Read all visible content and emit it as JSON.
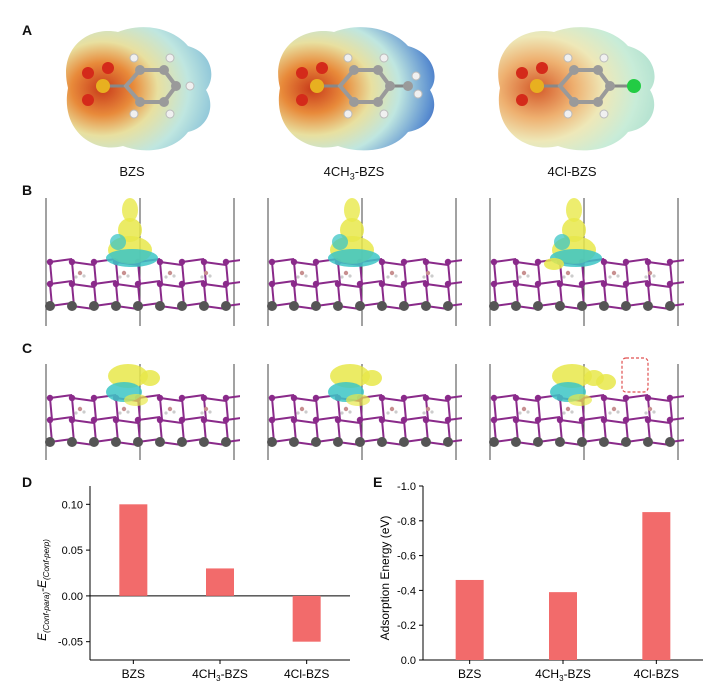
{
  "panels": {
    "A": "A",
    "B": "B",
    "C": "C",
    "D": "D",
    "E": "E"
  },
  "molecules": [
    {
      "label": "BZS",
      "sub": "",
      "tail": ""
    },
    {
      "label": "4CH",
      "sub": "3",
      "tail": "-BZS"
    },
    {
      "label": "4Cl-BZS",
      "sub": "",
      "tail": ""
    }
  ],
  "colors": {
    "bar": "#f26b6b",
    "charge_pos": "#e8e84a",
    "charge_neg": "#3cc6c6",
    "iodine": "#8a2a8a",
    "lead": "#555555",
    "sulfur": "#e8b020",
    "oxygen": "#d42a1a",
    "chlorine": "#22cc44"
  },
  "chart_data": [
    {
      "type": "bar",
      "panel": "D",
      "categories": [
        "BZS",
        "4CH3-BZS",
        "4Cl-BZS"
      ],
      "category_labels": [
        {
          "main": "BZS",
          "sub": "",
          "tail": ""
        },
        {
          "main": "4CH",
          "sub": "3",
          "tail": "-BZS"
        },
        {
          "main": "4Cl-BZS",
          "sub": "",
          "tail": ""
        }
      ],
      "values": [
        0.1,
        0.03,
        -0.05
      ],
      "ylim": [
        -0.07,
        0.12
      ],
      "yticks": [
        -0.05,
        0.0,
        0.05,
        0.1
      ],
      "ytick_labels": [
        "-0.05",
        "0.00",
        "0.05",
        "0.10"
      ],
      "ylabel_parts": {
        "E": "E",
        "sub1": "(Conf-para)",
        "dash": "-",
        "E2": "E",
        "sub2": "(Conf-perp)"
      },
      "xlabel": ""
    },
    {
      "type": "bar",
      "panel": "E",
      "categories": [
        "BZS",
        "4CH3-BZS",
        "4Cl-BZS"
      ],
      "category_labels": [
        {
          "main": "BZS",
          "sub": "",
          "tail": ""
        },
        {
          "main": "4CH",
          "sub": "3",
          "tail": "-BZS"
        },
        {
          "main": "4Cl-BZS",
          "sub": "",
          "tail": ""
        }
      ],
      "values": [
        -0.46,
        -0.39,
        -0.85
      ],
      "ylim": [
        0.0,
        -1.0
      ],
      "yticks": [
        0.0,
        -0.2,
        -0.4,
        -0.6,
        -0.8,
        -1.0
      ],
      "ytick_labels": [
        "0.0",
        "-0.2",
        "-0.4",
        "-0.6",
        "-0.8",
        "-1.0"
      ],
      "ylabel": "Adsorption Energy (eV)",
      "xlabel": "",
      "inverted_axis": true
    }
  ]
}
